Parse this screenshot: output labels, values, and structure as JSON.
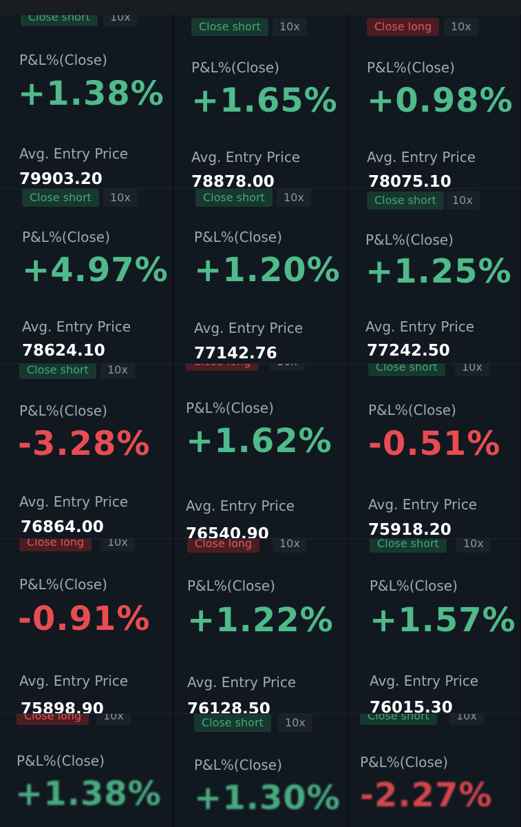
{
  "labels": {
    "pnl": "P&L%(Close)",
    "avg_entry": "Avg. Entry Price",
    "leverage": "10x"
  },
  "colors": {
    "positive": "#4fba8a",
    "negative": "#e84c52",
    "short_tag_bg": "#17382e",
    "long_tag_bg": "#4b1d22"
  },
  "cards": [
    {
      "tag": "Close short",
      "tag_type": "short",
      "pnl": "+1.38%",
      "entry": "79903.20"
    },
    {
      "tag": "Close short",
      "tag_type": "short",
      "pnl": "+1.65%",
      "entry": "78878.00"
    },
    {
      "tag": "Close long",
      "tag_type": "long",
      "pnl": "+0.98%",
      "entry": "78075.10"
    },
    {
      "tag": "Close short",
      "tag_type": "short",
      "pnl": "+4.97%",
      "entry": "78624.10"
    },
    {
      "tag": "Close short",
      "tag_type": "short",
      "pnl": "+1.20%",
      "entry": "77142.76"
    },
    {
      "tag": "Close short",
      "tag_type": "short",
      "pnl": "+1.25%",
      "entry": "77242.50"
    },
    {
      "tag": "Close short",
      "tag_type": "short",
      "pnl": "-3.28%",
      "entry": "76864.00"
    },
    {
      "tag": "Close long",
      "tag_type": "long",
      "pnl": "+1.62%",
      "entry": "76540.90"
    },
    {
      "tag": "Close short",
      "tag_type": "short",
      "pnl": "-0.51%",
      "entry": "75918.20"
    },
    {
      "tag": "Close long",
      "tag_type": "long",
      "pnl": "-0.91%",
      "entry": "75898.90"
    },
    {
      "tag": "Close long",
      "tag_type": "long",
      "pnl": "+1.22%",
      "entry": "76128.50"
    },
    {
      "tag": "Close short",
      "tag_type": "short",
      "pnl": "+1.57%",
      "entry": "76015.30"
    },
    {
      "tag": "Close long",
      "tag_type": "long",
      "pnl": "+1.38%",
      "entry": ""
    },
    {
      "tag": "Close short",
      "tag_type": "short",
      "pnl": "+1.30%",
      "entry": ""
    },
    {
      "tag": "Close short",
      "tag_type": "short",
      "pnl": "-2.27%",
      "entry": ""
    }
  ]
}
